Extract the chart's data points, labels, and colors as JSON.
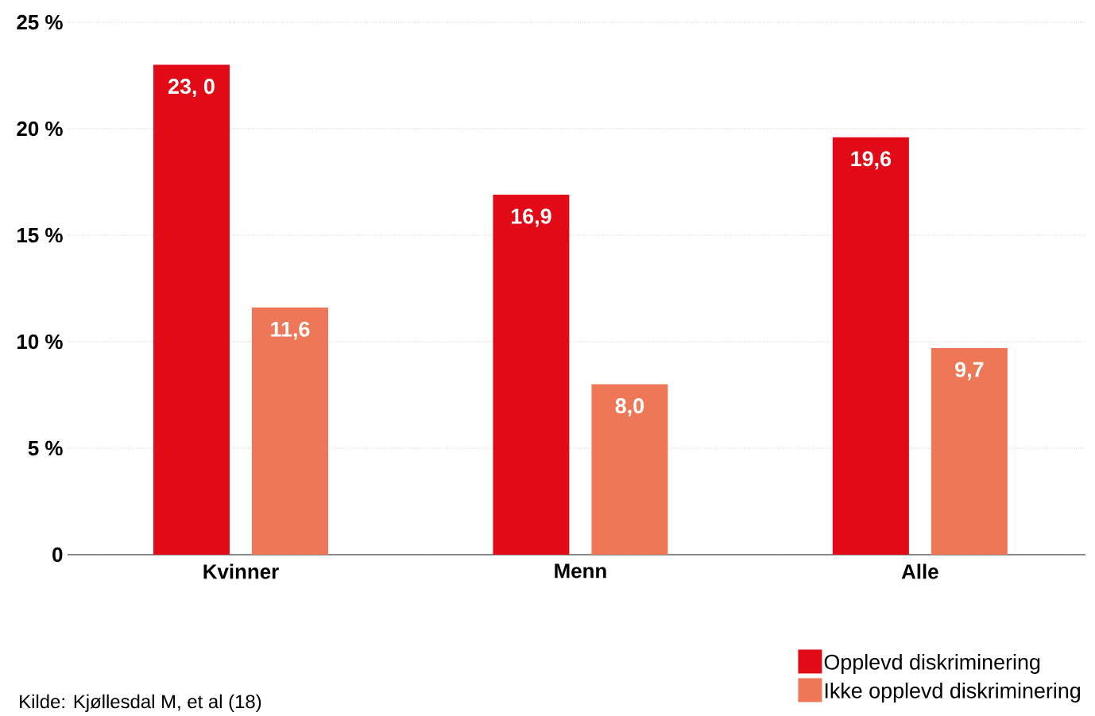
{
  "chart_data": {
    "type": "bar",
    "categories": [
      "Kvinner",
      "Menn",
      "Alle"
    ],
    "series": [
      {
        "name": "Opplevd diskriminering",
        "color": "#e20a16",
        "values": [
          23.0,
          16.9,
          19.6
        ],
        "value_labels": [
          "23, 0",
          "16,9",
          "19,6"
        ]
      },
      {
        "name": "Ikke opplevd diskriminering",
        "color": "#ee7757",
        "values": [
          11.6,
          8.0,
          9.7
        ],
        "value_labels": [
          "11,6",
          "8,0",
          "9,7"
        ]
      }
    ],
    "ylim": [
      0,
      25
    ],
    "yticks": [
      0,
      {
        "value": 5,
        "label": "5 %"
      },
      {
        "value": 10,
        "label": "10 %"
      },
      {
        "value": 15,
        "label": "15 %"
      },
      {
        "value": 20,
        "label": "20 %"
      },
      {
        "value": 25,
        "label": "25 %"
      }
    ],
    "grid": "y",
    "legend": "bottom right",
    "annotations": [
      "Kilde: Kjøllesdal M, et al (18)"
    ]
  }
}
